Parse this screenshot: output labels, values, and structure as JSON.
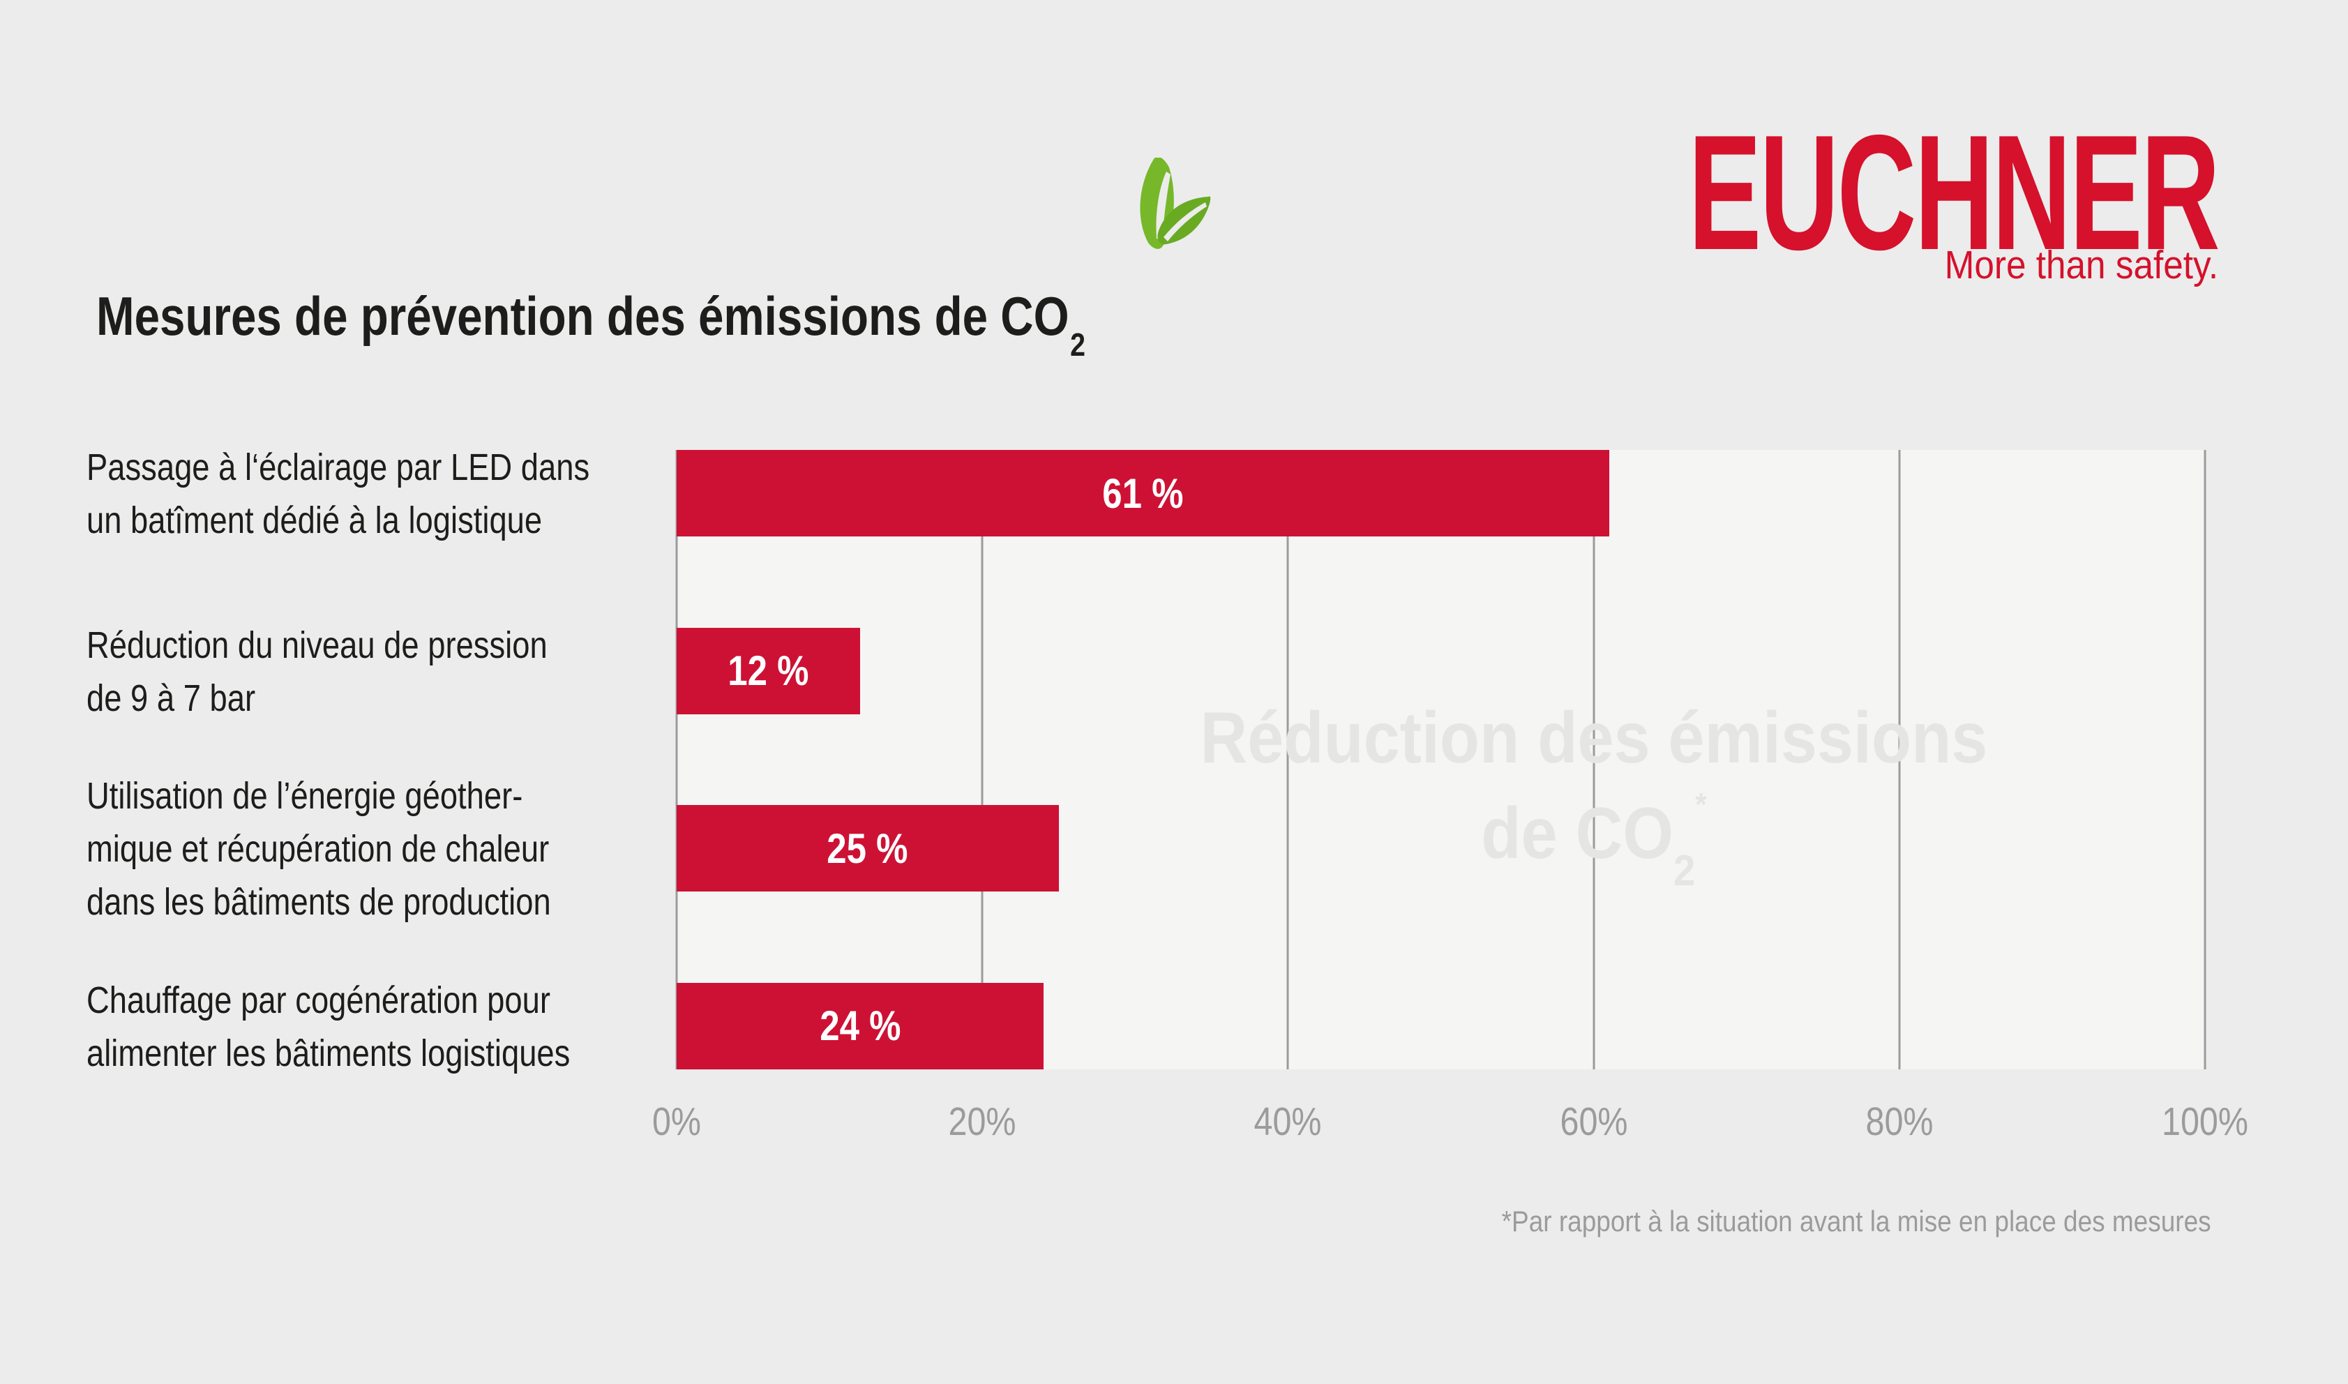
{
  "page": {
    "background": "#ececec",
    "plot_background": "#f5f5f4"
  },
  "header": {
    "title": "Mesures de prévention des émissions de CO",
    "title_subscript": "2",
    "logo": "EUCHNER",
    "tagline": "More than safety.",
    "brand_red": "#d5112b",
    "leaf_colors": [
      "#76b82a",
      "#69aa23"
    ]
  },
  "chart_data": {
    "type": "bar",
    "orientation": "horizontal",
    "title": "Mesures de prévention des émissions de CO2",
    "categories": [
      [
        "Passage à l‘éclairage par LED dans",
        "un batîment dédié à la logistique"
      ],
      [
        "Réduction du niveau de pression",
        "de 9 à 7 bar"
      ],
      [
        "Utilisation de l’énergie géother-",
        "mique et récupération de chaleur",
        "dans les bâtiments de production"
      ],
      [
        "Chauffage par cogénération pour",
        "alimenter les bâtiments logistiques"
      ]
    ],
    "values": [
      61,
      12,
      25,
      24
    ],
    "value_labels": [
      "61 %",
      "12 %",
      "25 %",
      "24 %"
    ],
    "x_ticks": [
      "0%",
      "20%",
      "40%",
      "60%",
      "80%",
      "100%"
    ],
    "xlim": [
      0,
      100
    ],
    "grid": true,
    "bar_color": "#cd1134",
    "value_text_color": "#ffffff",
    "gridline_color": "#9b9b9b",
    "tick_color": "#9b9b9b",
    "watermark_line1": "Réduction des émissions",
    "watermark_line2": "de CO",
    "watermark_subscript": "2",
    "watermark_superscript": "*",
    "footnote": "*Par rapport à la situation avant la mise en place des mesures"
  }
}
